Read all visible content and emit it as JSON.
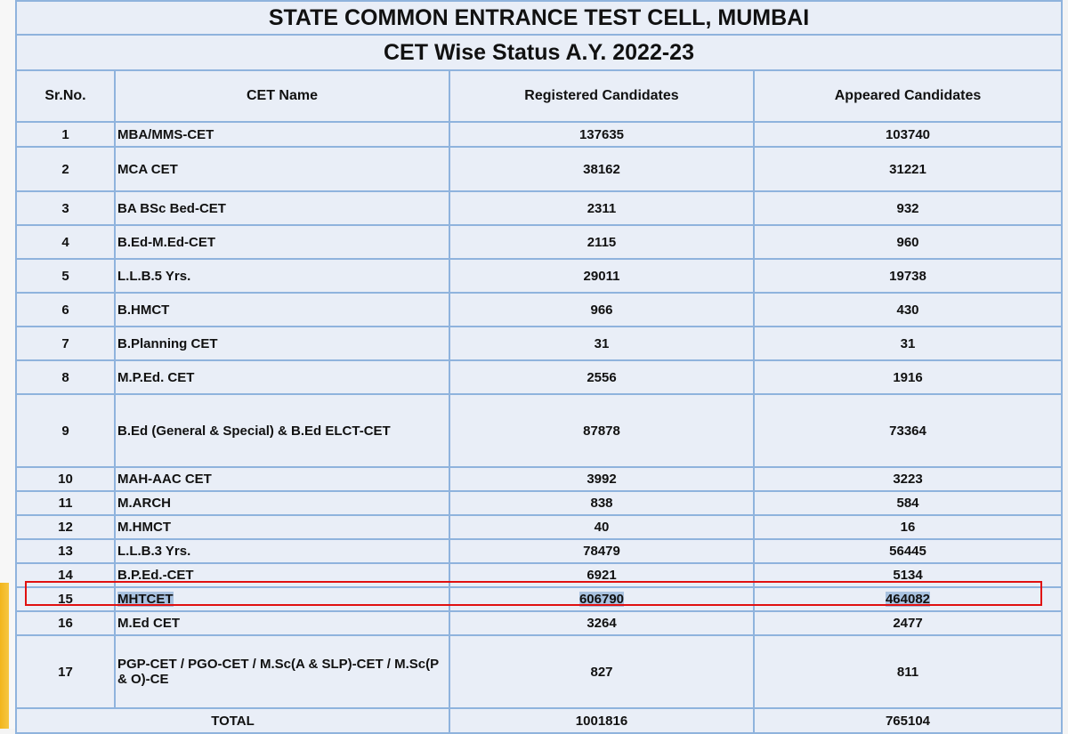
{
  "title": "STATE COMMON ENTRANCE TEST CELL, MUMBAI",
  "subtitle": "CET  Wise Status A.Y. 2022-23",
  "columns": [
    "Sr.No.",
    "CET Name",
    "Registered Candidates",
    "Appeared Candidates"
  ],
  "rows": [
    {
      "sr": "1",
      "name": "MBA/MMS-CET",
      "registered": "137635",
      "appeared": "103740",
      "h": 28
    },
    {
      "sr": "2",
      "name": "MCA CET",
      "registered": "38162",
      "appeared": "31221",
      "h": 50
    },
    {
      "sr": "3",
      "name": "BA BSc Bed-CET",
      "registered": "2311",
      "appeared": "932",
      "h": 38
    },
    {
      "sr": "4",
      "name": "B.Ed-M.Ed-CET",
      "registered": "2115",
      "appeared": "960",
      "h": 38
    },
    {
      "sr": "5",
      "name": "L.L.B.5 Yrs.",
      "registered": "29011",
      "appeared": "19738",
      "h": 38
    },
    {
      "sr": "6",
      "name": "B.HMCT",
      "registered": "966",
      "appeared": "430",
      "h": 38
    },
    {
      "sr": "7",
      "name": "B.Planning CET",
      "registered": "31",
      "appeared": "31",
      "h": 38
    },
    {
      "sr": "8",
      "name": "M.P.Ed. CET",
      "registered": "2556",
      "appeared": "1916",
      "h": 38
    },
    {
      "sr": "9",
      "name": "B.Ed (General & Special) & B.Ed ELCT-CET",
      "registered": "87878",
      "appeared": "73364",
      "h": 82
    },
    {
      "sr": "10",
      "name": "MAH-AAC CET",
      "registered": "3992",
      "appeared": "3223",
      "h": 27
    },
    {
      "sr": "11",
      "name": "M.ARCH",
      "registered": "838",
      "appeared": "584",
      "h": 27
    },
    {
      "sr": "12",
      "name": "M.HMCT",
      "registered": "40",
      "appeared": "16",
      "h": 27
    },
    {
      "sr": "13",
      "name": "L.L.B.3 Yrs.",
      "registered": "78479",
      "appeared": "56445",
      "h": 27
    },
    {
      "sr": "14",
      "name": "B.P.Ed.-CET",
      "registered": "6921",
      "appeared": "5134",
      "h": 27
    },
    {
      "sr": "15",
      "name": "MHTCET",
      "registered": "606790",
      "appeared": "464082",
      "h": 27,
      "highlighted": true
    },
    {
      "sr": "16",
      "name": "M.Ed CET",
      "registered": "3264",
      "appeared": "2477",
      "h": 27
    },
    {
      "sr": "17",
      "name": "PGP-CET / PGO-CET / M.Sc(A & SLP)-CET / M.Sc(P & O)-CE",
      "registered": "827",
      "appeared": "811",
      "h": 82
    }
  ],
  "total": {
    "label": "TOTAL",
    "registered": "1001816",
    "appeared": "765104"
  },
  "highlight_color": "#e01010"
}
